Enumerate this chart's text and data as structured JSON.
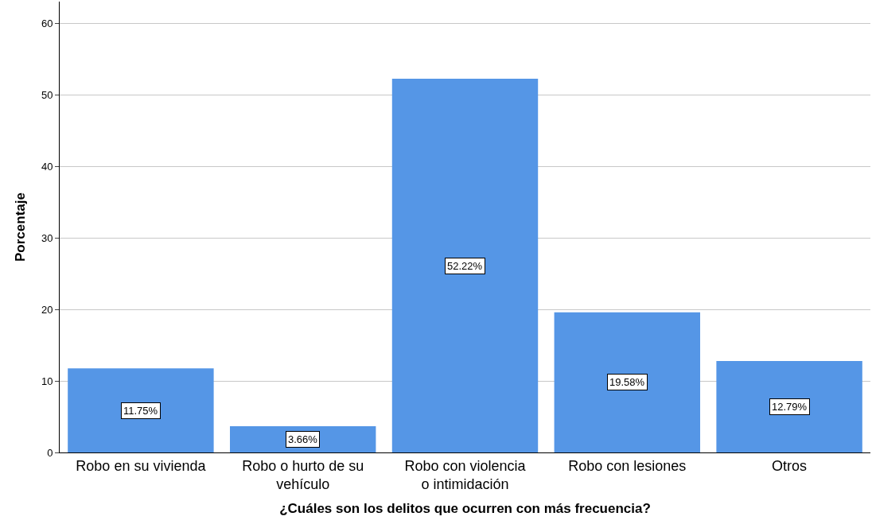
{
  "chart_data": {
    "type": "bar",
    "xlabel": "¿Cuáles son los delitos que ocurren con más frecuencia?",
    "ylabel": "Porcentaje",
    "categories": [
      "Robo en su vivienda",
      "Robo o hurto de su vehículo",
      "Robo con violencia o intimidación",
      "Robo con lesiones",
      "Otros"
    ],
    "values": [
      11.75,
      3.66,
      52.22,
      19.58,
      12.79
    ],
    "value_labels": [
      "11.75%",
      "3.66%",
      "52.22%",
      "19.58%",
      "12.79%"
    ],
    "color": "#5596e6",
    "ylim": [
      0,
      63
    ],
    "yticks": [
      0,
      10,
      20,
      30,
      40,
      50,
      60
    ],
    "grid": "y"
  }
}
